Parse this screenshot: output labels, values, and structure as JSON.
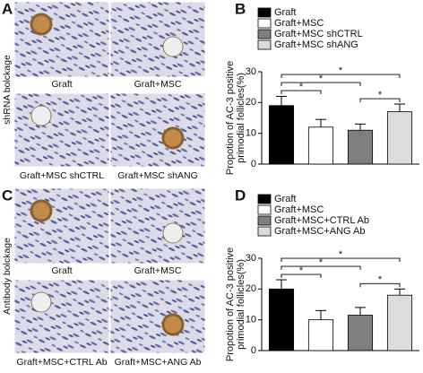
{
  "panels": [
    {
      "label": "A",
      "side_label": "shRNA bolckage",
      "images": [
        "Graft",
        "Graft+MSC",
        "Graft+MSC shCTRL",
        "Graft+MSC shANG"
      ]
    },
    {
      "label": "C",
      "side_label": "Antibody bolckage",
      "images": [
        "Graft",
        "Graft+MSC",
        "Graft+MSC+CTRL Ab",
        "Graft+MSC+ANG Ab"
      ]
    }
  ],
  "chart_data": [
    {
      "type": "bar",
      "panel_label": "B",
      "categories": [
        "Graft",
        "Graft+MSC",
        "Graft+MSC shCTRL",
        "Graft+MSC shANG"
      ],
      "values": [
        19,
        12,
        11,
        17
      ],
      "errors": [
        3,
        2.5,
        2,
        2.5
      ],
      "colors": [
        "#000000",
        "#ffffff",
        "#7f7f7f",
        "#dcdcdc"
      ],
      "ylabel": [
        "Propotion of AC-3 positive",
        "primodial follicles(%)"
      ],
      "ylim": [
        0,
        30
      ],
      "yticks": [
        0,
        10,
        20,
        30
      ],
      "annotations": [
        {
          "from": "Graft+MSC shCTRL",
          "to": "Graft+MSC shANG",
          "label": "*"
        },
        {
          "from": "Graft",
          "to": "Graft+MSC",
          "label": "*"
        },
        {
          "from": "Graft",
          "to": "Graft+MSC shCTRL",
          "label": "*"
        },
        {
          "from": "Graft",
          "to": "Graft+MSC shANG",
          "label": "*"
        }
      ]
    },
    {
      "type": "bar",
      "panel_label": "D",
      "categories": [
        "Graft",
        "Graft+MSC",
        "Graft+MSC+CTRL Ab",
        "Graft+MSC+ANG Ab"
      ],
      "values": [
        20,
        10,
        11.5,
        18
      ],
      "errors": [
        3,
        3,
        2.5,
        2
      ],
      "colors": [
        "#000000",
        "#ffffff",
        "#7f7f7f",
        "#dcdcdc"
      ],
      "ylabel": [
        "Propotion of AC-3 positive",
        "primodial follicles(%)"
      ],
      "ylim": [
        0,
        30
      ],
      "yticks": [
        0,
        10,
        20,
        30
      ],
      "annotations": [
        {
          "from": "Graft+MSC+CTRL Ab",
          "to": "Graft+MSC+ANG Ab",
          "label": "*"
        },
        {
          "from": "Graft",
          "to": "Graft+MSC",
          "label": "*"
        },
        {
          "from": "Graft",
          "to": "Graft+MSC+CTRL Ab",
          "label": "*"
        },
        {
          "from": "Graft",
          "to": "Graft+MSC+ANG Ab",
          "label": "*"
        }
      ]
    }
  ]
}
